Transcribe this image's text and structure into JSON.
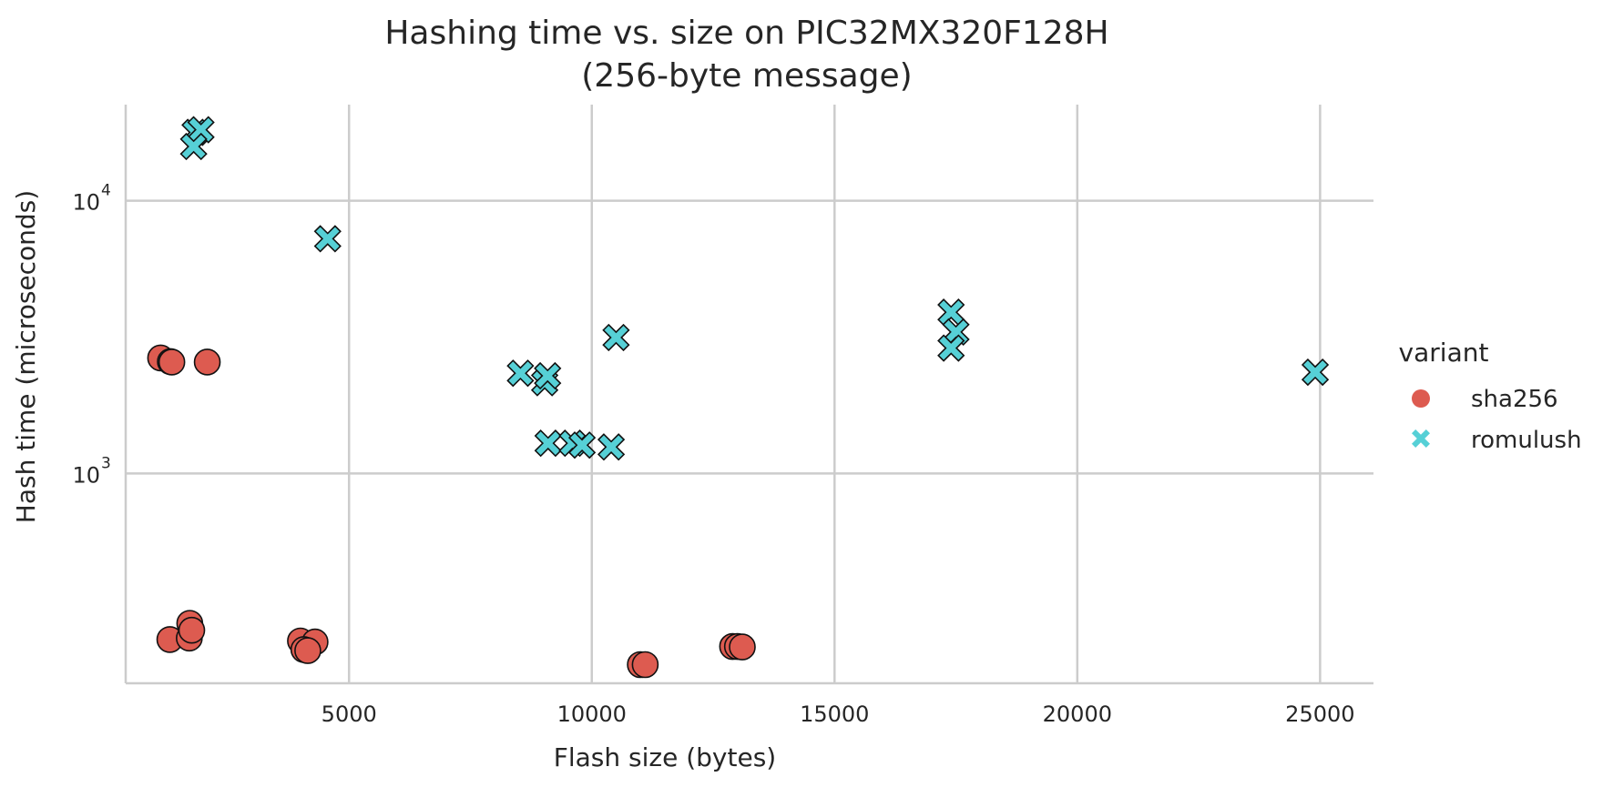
{
  "chart_data": {
    "type": "scatter",
    "title_line1": "Hashing time vs. size on PIC32MX320F128H",
    "title_line2": "(256-byte message)",
    "xlabel": "Flash size (bytes)",
    "ylabel": "Hash time (microseconds)",
    "xlim": [
      400,
      26100
    ],
    "ylim": [
      170,
      22500
    ],
    "yscale": "log",
    "x_ticks": [
      {
        "value": 5000,
        "label": "5000"
      },
      {
        "value": 10000,
        "label": "10000"
      },
      {
        "value": 15000,
        "label": "15000"
      },
      {
        "value": 20000,
        "label": "20000"
      },
      {
        "value": 25000,
        "label": "25000"
      }
    ],
    "y_ticks": [
      {
        "value": 1000,
        "base": "10",
        "exp": "3"
      },
      {
        "value": 10000,
        "base": "10",
        "exp": "4"
      }
    ],
    "grid": true,
    "legend": {
      "title": "variant",
      "position": "right"
    },
    "series": [
      {
        "name": "sha256",
        "marker": "circle",
        "color": "#dd5b50",
        "points": [
          {
            "x": 1120,
            "y": 2650
          },
          {
            "x": 1320,
            "y": 2570
          },
          {
            "x": 1350,
            "y": 2560
          },
          {
            "x": 2080,
            "y": 2560
          },
          {
            "x": 1720,
            "y": 282
          },
          {
            "x": 1310,
            "y": 246
          },
          {
            "x": 1710,
            "y": 249
          },
          {
            "x": 1760,
            "y": 266
          },
          {
            "x": 4000,
            "y": 243
          },
          {
            "x": 4300,
            "y": 241
          },
          {
            "x": 4070,
            "y": 226
          },
          {
            "x": 4150,
            "y": 224
          },
          {
            "x": 11000,
            "y": 199
          },
          {
            "x": 11100,
            "y": 199
          },
          {
            "x": 12900,
            "y": 232
          },
          {
            "x": 13000,
            "y": 232
          },
          {
            "x": 13100,
            "y": 231
          }
        ]
      },
      {
        "name": "romulush",
        "marker": "x",
        "color": "#56d0d6",
        "points": [
          {
            "x": 1830,
            "y": 17800
          },
          {
            "x": 1950,
            "y": 18200
          },
          {
            "x": 1800,
            "y": 15800
          },
          {
            "x": 4560,
            "y": 7250
          },
          {
            "x": 8530,
            "y": 2330
          },
          {
            "x": 9030,
            "y": 2150
          },
          {
            "x": 9090,
            "y": 2280
          },
          {
            "x": 10500,
            "y": 3150
          },
          {
            "x": 9100,
            "y": 1290
          },
          {
            "x": 9600,
            "y": 1290
          },
          {
            "x": 9800,
            "y": 1270
          },
          {
            "x": 10400,
            "y": 1250
          },
          {
            "x": 17400,
            "y": 3900
          },
          {
            "x": 17500,
            "y": 3300
          },
          {
            "x": 17400,
            "y": 2880
          },
          {
            "x": 24900,
            "y": 2350
          }
        ]
      }
    ]
  }
}
